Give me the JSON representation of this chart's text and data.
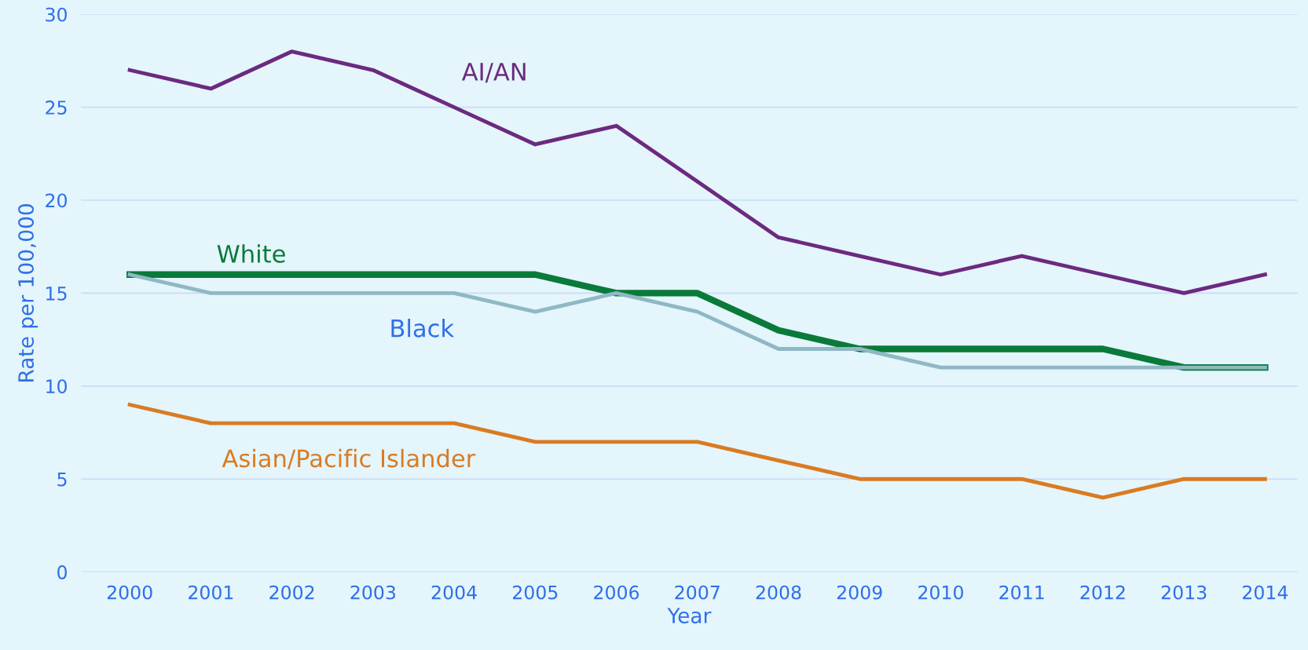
{
  "chart_data": {
    "type": "line",
    "xlabel": "Year",
    "ylabel": "Rate per 100,000",
    "categories": [
      "2000",
      "2001",
      "2002",
      "2003",
      "2004",
      "2005",
      "2006",
      "2007",
      "2008",
      "2009",
      "2010",
      "2011",
      "2012",
      "2013",
      "2014"
    ],
    "series": [
      {
        "name": "AI/AN",
        "color": "#6b2a7f",
        "values": [
          27,
          26,
          28,
          27,
          25,
          23,
          24,
          21,
          18,
          17,
          16,
          17,
          16,
          15,
          16
        ]
      },
      {
        "name": "White",
        "color": "#0a7a3a",
        "values": [
          16,
          16,
          16,
          16,
          16,
          16,
          15,
          15,
          13,
          12,
          12,
          12,
          12,
          11,
          11
        ]
      },
      {
        "name": "Black",
        "color": "#8fb8c4",
        "values": [
          16,
          15,
          15,
          15,
          15,
          14,
          15,
          14,
          12,
          12,
          11,
          11,
          11,
          11,
          11
        ]
      },
      {
        "name": "Asian/Pacific Islander",
        "color": "#d97b22",
        "values": [
          9,
          8,
          8,
          8,
          8,
          7,
          7,
          7,
          6,
          5,
          5,
          5,
          4,
          5,
          5
        ]
      }
    ],
    "ylim": [
      0,
      30
    ],
    "yticks": [
      0,
      5,
      10,
      15,
      20,
      25,
      30
    ],
    "grid": "y",
    "legend": false,
    "marker": "none",
    "line_style": "solid"
  }
}
